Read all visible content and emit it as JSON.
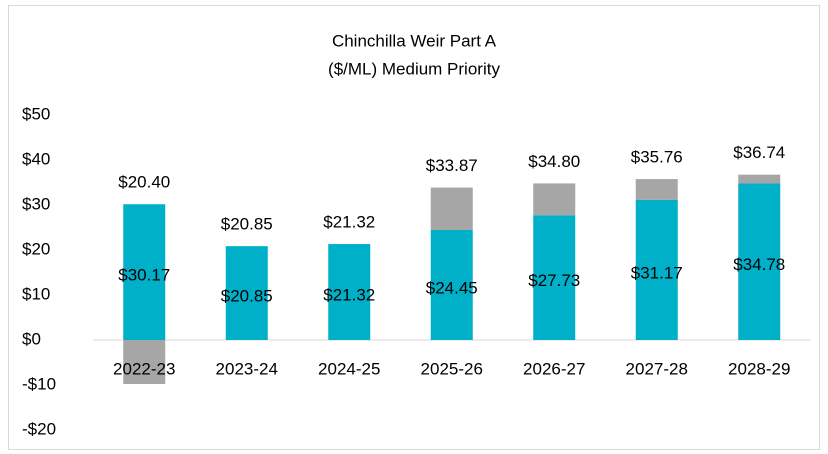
{
  "chart_data": {
    "type": "bar",
    "stacked": true,
    "title": [
      "Chinchilla Weir Part A",
      "($/ML) Medium Priority"
    ],
    "categories": [
      "2022-23",
      "2023-24",
      "2024-25",
      "2025-26",
      "2026-27",
      "2027-28",
      "2028-29"
    ],
    "series": [
      {
        "color": "#00b0c8",
        "values": [
          30.17,
          20.85,
          21.32,
          24.45,
          27.73,
          31.17,
          34.78
        ],
        "value_labels": [
          "$30.17",
          "$20.85",
          "$21.32",
          "$24.45",
          "$27.73",
          "$31.17",
          "$34.78"
        ]
      },
      {
        "color": "#a6a6a6",
        "values": [
          -9.77,
          0,
          0,
          9.42,
          7.07,
          4.59,
          1.96
        ]
      }
    ],
    "totals": {
      "values": [
        20.4,
        20.85,
        21.32,
        33.87,
        34.8,
        35.76,
        36.74
      ],
      "value_labels": [
        "$20.40",
        "$20.85",
        "$21.32",
        "$33.87",
        "$34.80",
        "$35.76",
        "$36.74"
      ]
    },
    "ylim": [
      -20,
      50
    ],
    "yticks": [
      {
        "value": -20,
        "label": "-$20"
      },
      {
        "value": -10,
        "label": "-$10"
      },
      {
        "value": 0,
        "label": "$0"
      },
      {
        "value": 10,
        "label": "$10"
      },
      {
        "value": 20,
        "label": "$20"
      },
      {
        "value": 30,
        "label": "$30"
      },
      {
        "value": 40,
        "label": "$40"
      },
      {
        "value": 50,
        "label": "$50"
      }
    ],
    "grid": false
  }
}
